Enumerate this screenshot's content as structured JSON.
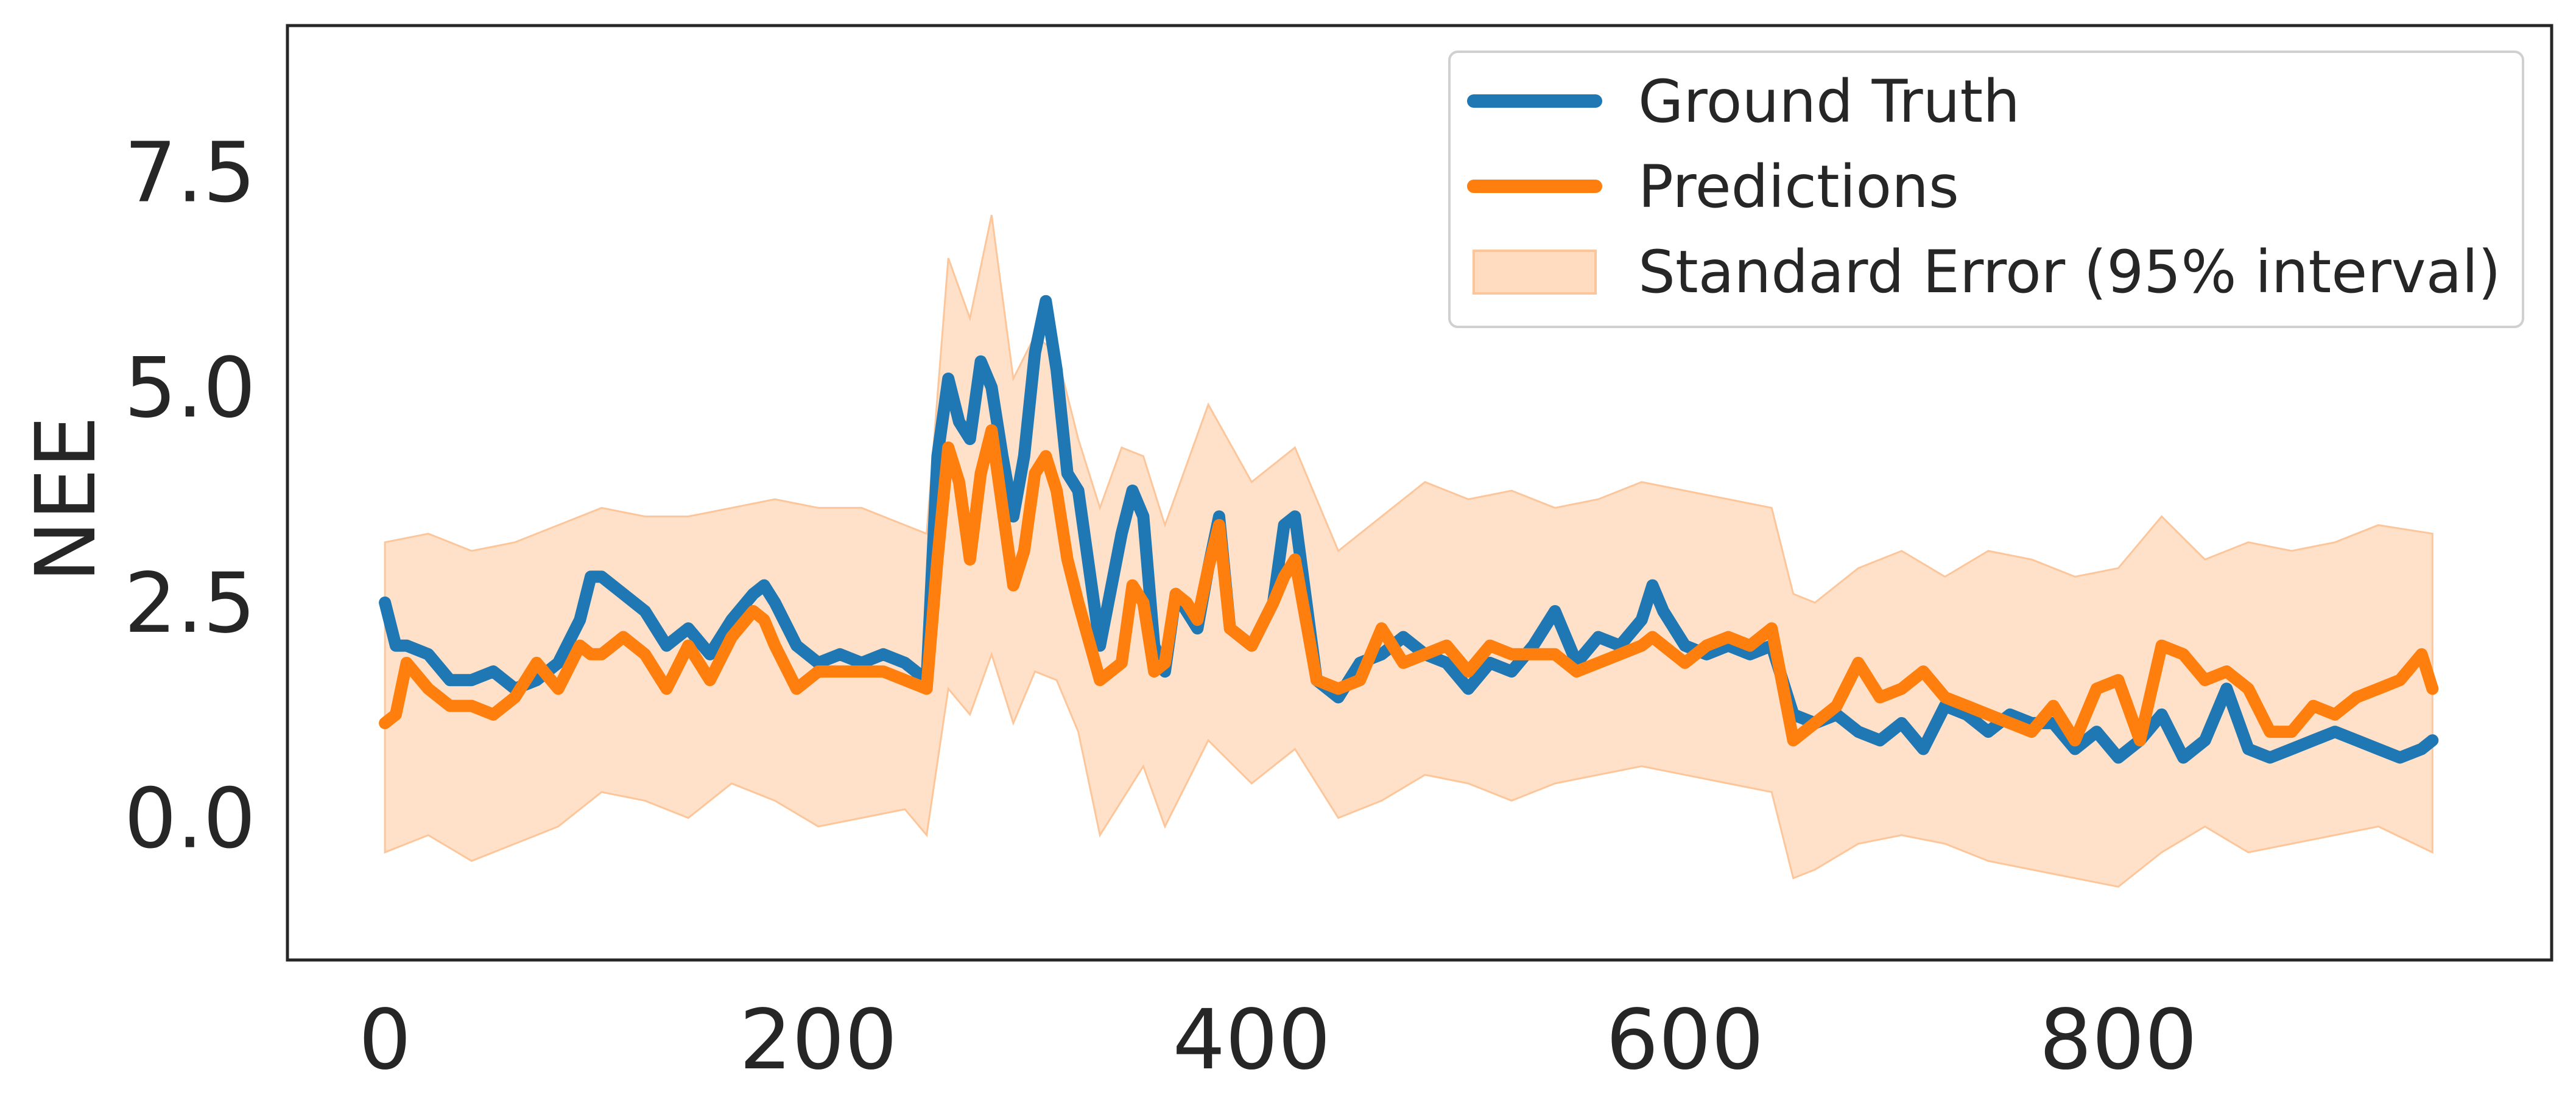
{
  "chart_data": {
    "type": "line",
    "title": "",
    "xlabel": "",
    "ylabel": "NEE",
    "xlim": [
      -45,
      1000
    ],
    "ylim": [
      -1.65,
      9.2
    ],
    "xticks": [
      0,
      200,
      400,
      600,
      800
    ],
    "xtick_labels": [
      "0",
      "200",
      "400",
      "600",
      "800"
    ],
    "yticks": [
      0.0,
      2.5,
      5.0,
      7.5
    ],
    "ytick_labels": [
      "0.0",
      "2.5",
      "5.0",
      "7.5"
    ],
    "grid": false,
    "legend_position": "top-right",
    "legend": [
      {
        "label": "Ground Truth",
        "kind": "line"
      },
      {
        "label": "Predictions",
        "kind": "line"
      },
      {
        "label": "Standard Error (95% interval)",
        "kind": "band"
      }
    ],
    "colors": {
      "ground_truth": "#1f77b4",
      "predictions": "#ff7f0e",
      "band": "#ffdcc0",
      "band_edge": "#fdc69a"
    },
    "series": [
      {
        "name": "Ground Truth",
        "x": [
          0,
          5,
          10,
          20,
          30,
          40,
          50,
          60,
          70,
          80,
          90,
          95,
          100,
          110,
          120,
          130,
          140,
          150,
          160,
          170,
          175,
          180,
          190,
          200,
          210,
          220,
          230,
          240,
          250,
          255,
          260,
          265,
          270,
          275,
          280,
          285,
          290,
          295,
          300,
          305,
          310,
          315,
          320,
          330,
          340,
          345,
          350,
          355,
          360,
          365,
          370,
          375,
          380,
          385,
          390,
          400,
          410,
          415,
          420,
          430,
          440,
          450,
          460,
          470,
          480,
          490,
          500,
          510,
          520,
          530,
          540,
          550,
          560,
          570,
          580,
          585,
          590,
          600,
          610,
          620,
          630,
          640,
          650,
          660,
          670,
          680,
          690,
          700,
          710,
          720,
          730,
          740,
          750,
          760,
          770,
          780,
          790,
          800,
          810,
          820,
          830,
          840,
          850,
          860,
          870,
          880,
          890,
          900,
          910,
          920,
          930,
          940,
          945
        ],
        "y": [
          2.5,
          2.0,
          2.0,
          1.9,
          1.6,
          1.6,
          1.7,
          1.5,
          1.6,
          1.8,
          2.3,
          2.8,
          2.8,
          2.6,
          2.4,
          2.0,
          2.2,
          1.9,
          2.3,
          2.6,
          2.7,
          2.5,
          2.0,
          1.8,
          1.9,
          1.8,
          1.9,
          1.8,
          1.6,
          4.2,
          5.1,
          4.6,
          4.4,
          5.3,
          5.0,
          4.2,
          3.5,
          4.2,
          5.4,
          6.0,
          5.2,
          4.0,
          3.8,
          2.0,
          3.3,
          3.8,
          3.5,
          2.0,
          1.7,
          2.6,
          2.4,
          2.2,
          2.9,
          3.5,
          2.2,
          2.0,
          2.5,
          3.4,
          3.5,
          1.6,
          1.4,
          1.8,
          1.9,
          2.1,
          1.9,
          1.8,
          1.5,
          1.8,
          1.7,
          2.0,
          2.4,
          1.8,
          2.1,
          2.0,
          2.3,
          2.7,
          2.4,
          2.0,
          1.9,
          2.0,
          1.9,
          2.0,
          1.2,
          1.1,
          1.2,
          1.0,
          0.9,
          1.1,
          0.8,
          1.3,
          1.2,
          1.0,
          1.2,
          1.1,
          1.1,
          0.8,
          1.0,
          0.7,
          0.9,
          1.2,
          0.7,
          0.9,
          1.5,
          0.8,
          0.7,
          0.8,
          0.9,
          1.0,
          0.9,
          0.8,
          0.7,
          0.8,
          0.9
        ]
      },
      {
        "name": "Predictions",
        "x": [
          0,
          5,
          10,
          20,
          30,
          40,
          50,
          60,
          70,
          80,
          90,
          95,
          100,
          110,
          120,
          130,
          140,
          150,
          160,
          170,
          175,
          180,
          190,
          200,
          210,
          220,
          230,
          240,
          250,
          255,
          260,
          265,
          270,
          275,
          280,
          285,
          290,
          295,
          300,
          305,
          310,
          315,
          320,
          330,
          340,
          345,
          350,
          355,
          360,
          365,
          370,
          375,
          380,
          385,
          390,
          400,
          410,
          415,
          420,
          430,
          440,
          450,
          460,
          470,
          480,
          490,
          500,
          510,
          520,
          530,
          540,
          550,
          560,
          570,
          580,
          585,
          590,
          600,
          610,
          620,
          630,
          640,
          650,
          660,
          670,
          680,
          690,
          700,
          710,
          720,
          730,
          740,
          750,
          760,
          770,
          780,
          790,
          800,
          810,
          820,
          830,
          840,
          850,
          860,
          870,
          880,
          890,
          900,
          910,
          920,
          930,
          940,
          945
        ],
        "y": [
          1.1,
          1.2,
          1.8,
          1.5,
          1.3,
          1.3,
          1.2,
          1.4,
          1.8,
          1.5,
          2.0,
          1.9,
          1.9,
          2.1,
          1.9,
          1.5,
          2.0,
          1.6,
          2.1,
          2.4,
          2.3,
          2.0,
          1.5,
          1.7,
          1.7,
          1.7,
          1.7,
          1.6,
          1.5,
          3.0,
          4.3,
          3.9,
          3.0,
          4.0,
          4.5,
          3.6,
          2.7,
          3.1,
          4.0,
          4.2,
          3.8,
          3.0,
          2.5,
          1.6,
          1.8,
          2.7,
          2.5,
          1.7,
          1.8,
          2.6,
          2.5,
          2.3,
          2.9,
          3.4,
          2.2,
          2.0,
          2.5,
          2.8,
          3.0,
          1.6,
          1.5,
          1.6,
          2.2,
          1.8,
          1.9,
          2.0,
          1.7,
          2.0,
          1.9,
          1.9,
          1.9,
          1.7,
          1.8,
          1.9,
          2.0,
          2.1,
          2.0,
          1.8,
          2.0,
          2.1,
          2.0,
          2.2,
          0.9,
          1.1,
          1.3,
          1.8,
          1.4,
          1.5,
          1.7,
          1.4,
          1.3,
          1.2,
          1.1,
          1.0,
          1.3,
          0.9,
          1.5,
          1.6,
          0.9,
          2.0,
          1.9,
          1.6,
          1.7,
          1.5,
          1.0,
          1.0,
          1.3,
          1.2,
          1.4,
          1.5,
          1.6,
          1.9,
          1.5
        ]
      }
    ],
    "band": {
      "name": "Standard Error (95% interval)",
      "x": [
        0,
        20,
        40,
        60,
        80,
        100,
        120,
        140,
        160,
        180,
        200,
        220,
        240,
        250,
        260,
        270,
        280,
        290,
        300,
        310,
        320,
        330,
        340,
        350,
        360,
        380,
        400,
        420,
        440,
        460,
        480,
        500,
        520,
        540,
        560,
        580,
        600,
        620,
        640,
        650,
        660,
        680,
        700,
        720,
        740,
        760,
        780,
        800,
        820,
        840,
        860,
        880,
        900,
        920,
        945
      ],
      "lower": [
        -0.4,
        -0.2,
        -0.5,
        -0.3,
        -0.1,
        0.3,
        0.2,
        0.0,
        0.4,
        0.2,
        -0.1,
        0.0,
        0.1,
        -0.2,
        1.5,
        1.2,
        1.9,
        1.1,
        1.7,
        1.6,
        1.0,
        -0.2,
        0.2,
        0.6,
        -0.1,
        0.9,
        0.4,
        0.8,
        0.0,
        0.2,
        0.5,
        0.4,
        0.2,
        0.4,
        0.5,
        0.6,
        0.5,
        0.4,
        0.3,
        -0.7,
        -0.6,
        -0.3,
        -0.2,
        -0.3,
        -0.5,
        -0.6,
        -0.7,
        -0.8,
        -0.4,
        -0.1,
        -0.4,
        -0.3,
        -0.2,
        -0.1,
        -0.4
      ],
      "upper": [
        3.2,
        3.3,
        3.1,
        3.2,
        3.4,
        3.6,
        3.5,
        3.5,
        3.6,
        3.7,
        3.6,
        3.6,
        3.4,
        3.3,
        6.5,
        5.8,
        7.0,
        5.1,
        5.6,
        5.4,
        4.4,
        3.6,
        4.3,
        4.2,
        3.4,
        4.8,
        3.9,
        4.3,
        3.1,
        3.5,
        3.9,
        3.7,
        3.8,
        3.6,
        3.7,
        3.9,
        3.8,
        3.7,
        3.6,
        2.6,
        2.5,
        2.9,
        3.1,
        2.8,
        3.1,
        3.0,
        2.8,
        2.9,
        3.5,
        3.0,
        3.2,
        3.1,
        3.2,
        3.4,
        3.3
      ]
    }
  }
}
